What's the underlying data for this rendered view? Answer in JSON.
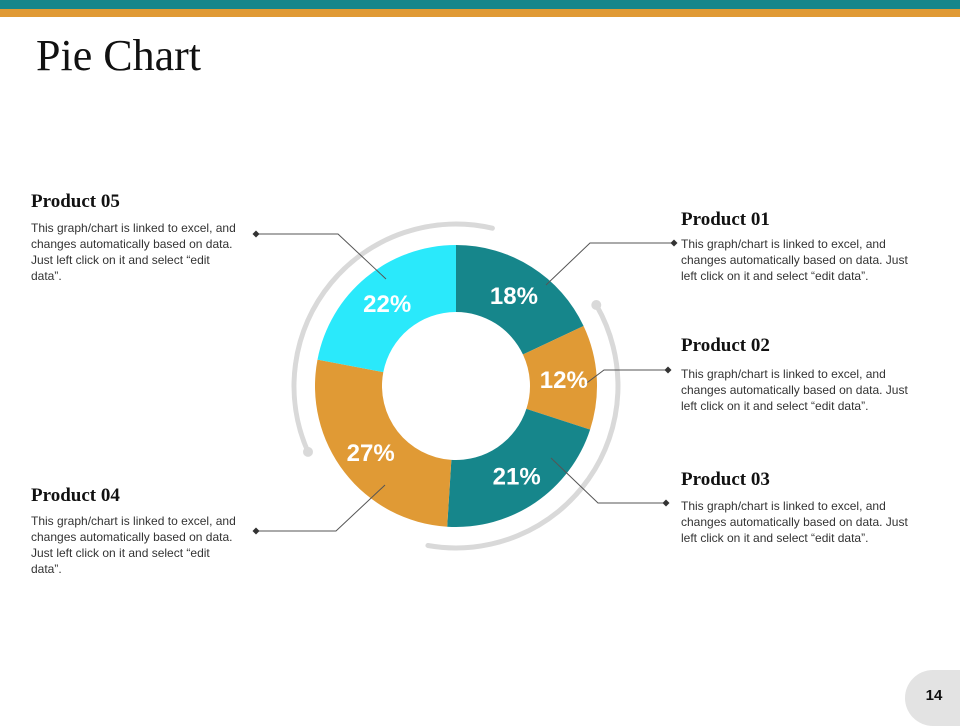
{
  "slide": {
    "title": "Pie Chart",
    "page_number": "14",
    "colors": {
      "teal": "#16868b",
      "orange": "#e09a35",
      "cyan": "#2ae9fb",
      "ring": "#d9d9d9"
    }
  },
  "products": [
    {
      "name": "Product 01",
      "description": "This graph/chart is linked to excel, and changes automatically based on data. Just left click on it and select “edit data”."
    },
    {
      "name": "Product 02",
      "description": "This graph/chart is linked to excel, and changes automatically based on data. Just left click on it and select “edit data”."
    },
    {
      "name": "Product 03",
      "description": "This graph/chart is linked to excel, and changes automatically based on data. Just left click on it and select “edit data”."
    },
    {
      "name": "Product 04",
      "description": "This graph/chart is linked to excel, and changes automatically based on data. Just left click on it and select “edit data”."
    },
    {
      "name": "Product 05",
      "description": "This graph/chart is linked to excel, and changes automatically based on data. Just left click on it and select “edit data”."
    }
  ],
  "chart_data": {
    "type": "pie",
    "variant": "donut",
    "title": "",
    "labels": [
      "Product 01",
      "Product 02",
      "Product 03",
      "Product 04",
      "Product 05"
    ],
    "values": [
      18,
      12,
      21,
      27,
      22
    ],
    "value_labels": [
      "18%",
      "12%",
      "21%",
      "27%",
      "22%"
    ],
    "colors": [
      "#16868b",
      "#e09a35",
      "#16868b",
      "#e09a35",
      "#2ae9fb"
    ],
    "legend": "none"
  }
}
